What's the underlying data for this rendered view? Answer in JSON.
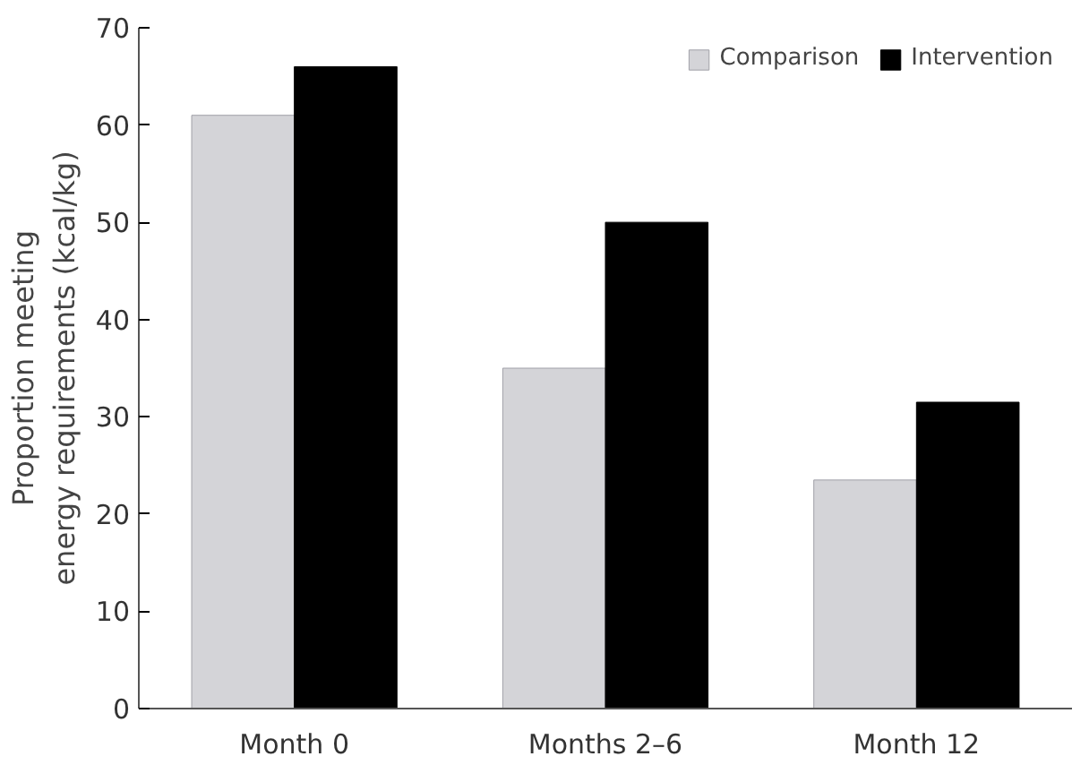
{
  "chart_data": {
    "type": "bar",
    "ylabel": "Proportion meeting\nenergy requirements (kcal/kg)",
    "categories": [
      "Month 0",
      "Months 2–6",
      "Month 12"
    ],
    "series": [
      {
        "name": "Comparison",
        "color": "#d4d4d8",
        "values": [
          61,
          35,
          23.5
        ]
      },
      {
        "name": "Intervention",
        "color": "#000000",
        "values": [
          66,
          50,
          31.5
        ]
      }
    ],
    "ylim": [
      0,
      70
    ],
    "yticks": [
      0,
      10,
      20,
      30,
      40,
      50,
      60,
      70
    ],
    "grid": false,
    "legend": "top right"
  }
}
